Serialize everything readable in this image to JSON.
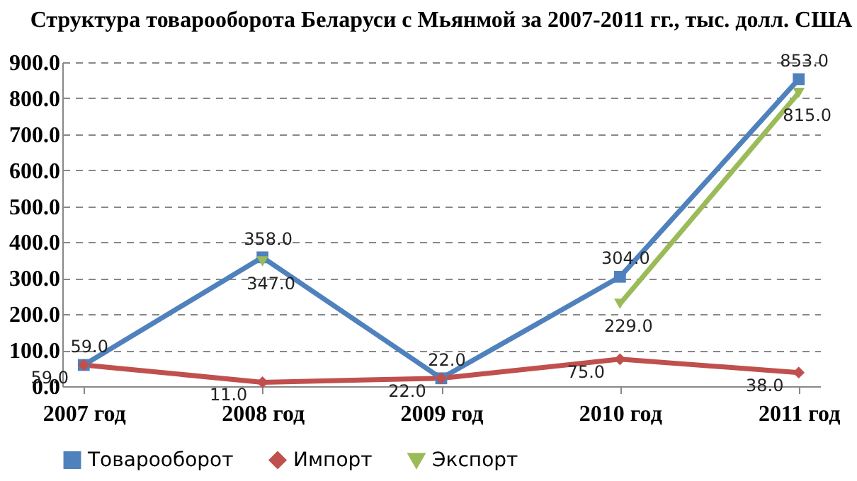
{
  "chart_data": {
    "type": "line",
    "title": "Структура товарооборота Беларуси с Мьянмой за 2007-2011 гг., тыс. долл. США",
    "categories": [
      "2007 год",
      "2008 год",
      "2009 год",
      "2010 год",
      "2011 год"
    ],
    "series": [
      {
        "name": "Товарооборот",
        "color": "#4f81bd",
        "marker": "square",
        "values": [
          59,
          358,
          22,
          304,
          853
        ],
        "value_labels": [
          "59.0",
          "358.0",
          "22.0",
          "304.0",
          "853.0"
        ]
      },
      {
        "name": "Импорт",
        "color": "#c0504d",
        "marker": "diamond",
        "values": [
          59,
          11,
          22,
          75,
          38
        ],
        "value_labels": [
          "59.0",
          "11.0",
          "22.0",
          "75.0",
          "38.0"
        ]
      },
      {
        "name": "Экспорт",
        "color": "#9bbb59",
        "marker": "triangle",
        "values": [
          null,
          347,
          null,
          229,
          815
        ],
        "value_labels": [
          null,
          "347.0",
          null,
          "229.0",
          "815.0"
        ]
      }
    ],
    "ylim": [
      0,
      900
    ],
    "yticks": [
      {
        "value": 0,
        "label": "0.0"
      },
      {
        "value": 100,
        "label": "100.0"
      },
      {
        "value": 200,
        "label": "200.0"
      },
      {
        "value": 300,
        "label": "300.0"
      },
      {
        "value": 400,
        "label": "400.0"
      },
      {
        "value": 500,
        "label": "500.0"
      },
      {
        "value": 600,
        "label": "600.0"
      },
      {
        "value": 700,
        "label": "700.0"
      },
      {
        "value": 800,
        "label": "800.0"
      },
      {
        "value": 900,
        "label": "900.0"
      }
    ],
    "grid": "y",
    "legend": "bottom",
    "line_style": "solid"
  }
}
